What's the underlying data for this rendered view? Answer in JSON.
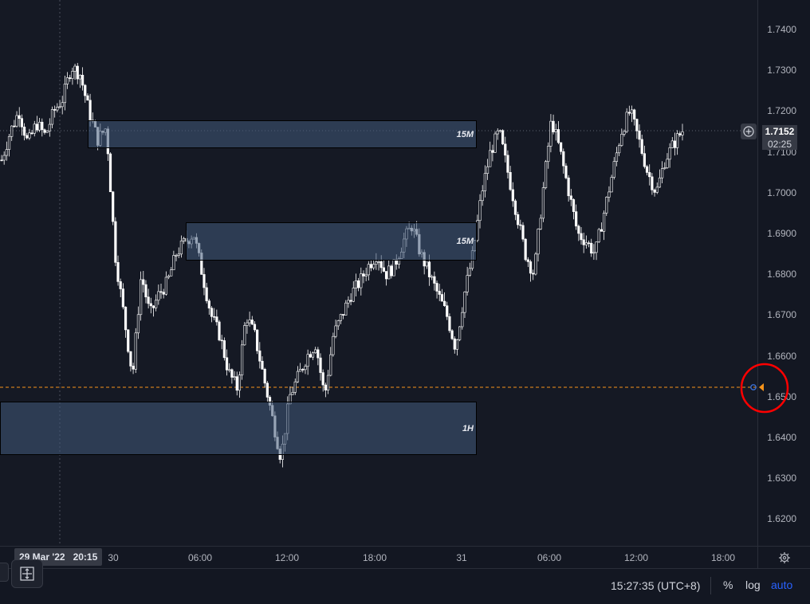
{
  "price_axis": {
    "ticks": [
      "1.7400",
      "1.7300",
      "1.7200",
      "1.7100",
      "1.7000",
      "1.6900",
      "1.6800",
      "1.6700",
      "1.6600",
      "1.6500",
      "1.6400",
      "1.6300",
      "1.6200"
    ],
    "last_price": "1.7152",
    "countdown": "02:25"
  },
  "time_axis": {
    "ticks": [
      "30",
      "06:00",
      "12:00",
      "18:00",
      "31",
      "06:00",
      "12:00",
      "18:00"
    ],
    "crosshair_date": "29 Mar '22",
    "crosshair_time": "20:15"
  },
  "zones": [
    {
      "label": "15M",
      "color": "#425a7a"
    },
    {
      "label": "15M",
      "color": "#425a7a"
    },
    {
      "label": "1H",
      "color": "#425a7a"
    }
  ],
  "bottom_bar": {
    "clock": "15:27:35 (UTC+8)",
    "percent_label": "%",
    "log_label": "log",
    "auto_label": "auto"
  },
  "colors": {
    "background": "#151924",
    "candle": "#ffffff",
    "alert_line": "#f7931a",
    "annotation_circle": "#ff0000",
    "auto_active": "#2962ff"
  },
  "icons": [
    "add-alert-icon",
    "settings-gear-icon",
    "measure-icon",
    "alert-marker-icon"
  ],
  "chart_data": {
    "type": "candlestick",
    "symbol_timeframe": "15m",
    "ylim": [
      1.615,
      1.747
    ],
    "alert_level": 1.652,
    "x_ticks": [
      "30",
      "06:00",
      "12:00",
      "18:00",
      "31",
      "06:00",
      "12:00",
      "18:00"
    ],
    "path_points": [
      [
        1.708
      ],
      [
        1.715
      ],
      [
        1.72
      ],
      [
        1.712
      ],
      [
        1.717
      ],
      [
        1.714
      ],
      [
        1.72
      ],
      [
        1.723
      ],
      [
        1.731
      ],
      [
        1.729
      ],
      [
        1.72
      ],
      [
        1.713
      ],
      [
        1.716
      ],
      [
        1.685
      ],
      [
        1.67
      ],
      [
        1.655
      ],
      [
        1.68
      ],
      [
        1.67
      ],
      [
        1.675
      ],
      [
        1.678
      ],
      [
        1.685
      ],
      [
        1.688
      ],
      [
        1.69
      ],
      [
        1.68
      ],
      [
        1.67
      ],
      [
        1.665
      ],
      [
        1.656
      ],
      [
        1.652
      ],
      [
        1.67
      ],
      [
        1.665
      ],
      [
        1.655
      ],
      [
        1.645
      ],
      [
        1.635
      ],
      [
        1.65
      ],
      [
        1.655
      ],
      [
        1.66
      ],
      [
        1.663
      ],
      [
        1.65
      ],
      [
        1.665
      ],
      [
        1.67
      ],
      [
        1.675
      ],
      [
        1.678
      ],
      [
        1.682
      ],
      [
        1.685
      ],
      [
        1.68
      ],
      [
        1.682
      ],
      [
        1.688
      ],
      [
        1.692
      ],
      [
        1.685
      ],
      [
        1.68
      ],
      [
        1.675
      ],
      [
        1.67
      ],
      [
        1.662
      ],
      [
        1.675
      ],
      [
        1.685
      ],
      [
        1.7
      ],
      [
        1.71
      ],
      [
        1.715
      ],
      [
        1.705
      ],
      [
        1.695
      ],
      [
        1.685
      ],
      [
        1.68
      ],
      [
        1.7
      ],
      [
        1.718
      ],
      [
        1.71
      ],
      [
        1.7
      ],
      [
        1.69
      ],
      [
        1.688
      ],
      [
        1.685
      ],
      [
        1.695
      ],
      [
        1.705
      ],
      [
        1.715
      ],
      [
        1.72
      ],
      [
        1.713
      ],
      [
        1.705
      ],
      [
        1.7
      ],
      [
        1.708
      ],
      [
        1.712
      ],
      [
        1.7152
      ]
    ]
  }
}
